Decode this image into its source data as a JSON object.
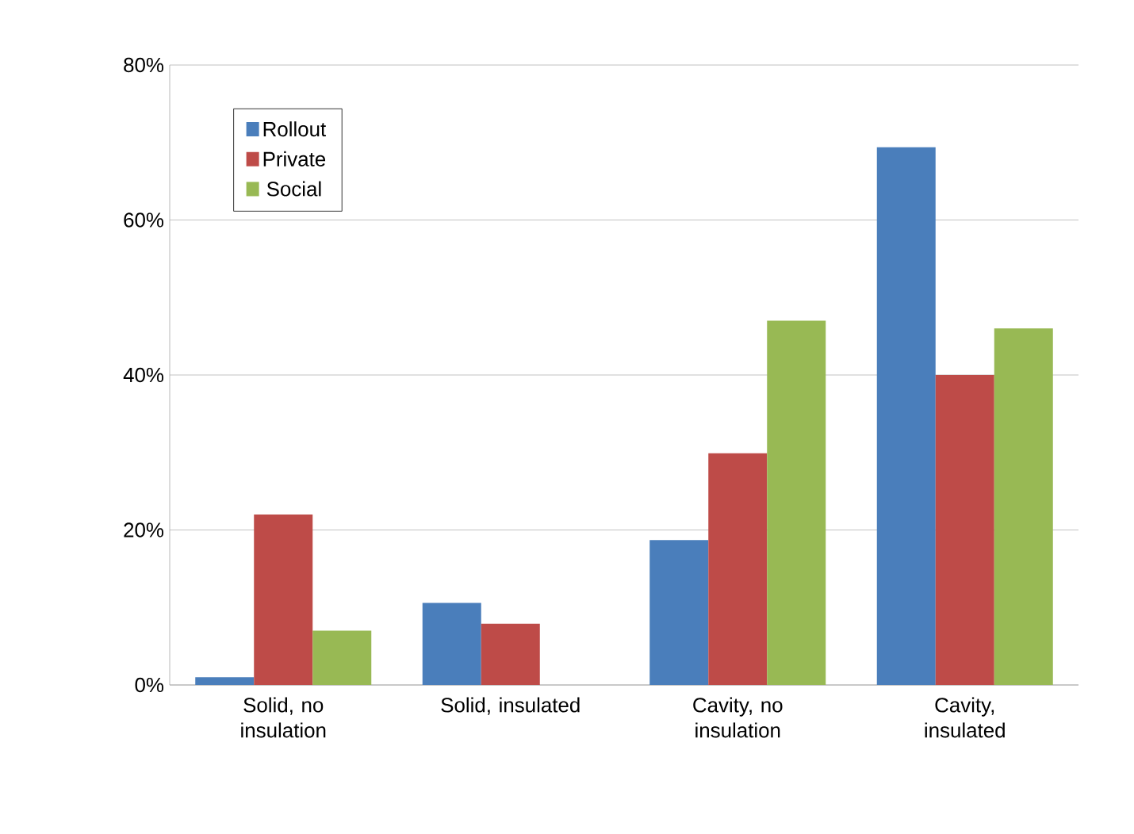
{
  "chart_data": {
    "type": "bar",
    "categories": [
      "Solid, no insulation",
      "Solid, insulated",
      "Cavity, no insulation",
      "Cavity, insulated"
    ],
    "series": [
      {
        "name": "Rollout",
        "color": "#4a7ebb",
        "values": [
          1.0,
          10.6,
          18.7,
          69.4
        ]
      },
      {
        "name": "Private",
        "color": "#be4b48",
        "values": [
          22,
          7.9,
          29.9,
          40
        ]
      },
      {
        "name": "Social",
        "color": "#98b954",
        "values": [
          7,
          0,
          47,
          46
        ]
      }
    ],
    "ylim": [
      0,
      80
    ],
    "yticks": [
      {
        "value": 0,
        "label": "0%"
      },
      {
        "value": 20,
        "label": "20%"
      },
      {
        "value": 40,
        "label": "40%"
      },
      {
        "value": 60,
        "label": "60%"
      },
      {
        "value": 80,
        "label": "80%"
      }
    ],
    "grid": "y",
    "legend": "top left"
  }
}
